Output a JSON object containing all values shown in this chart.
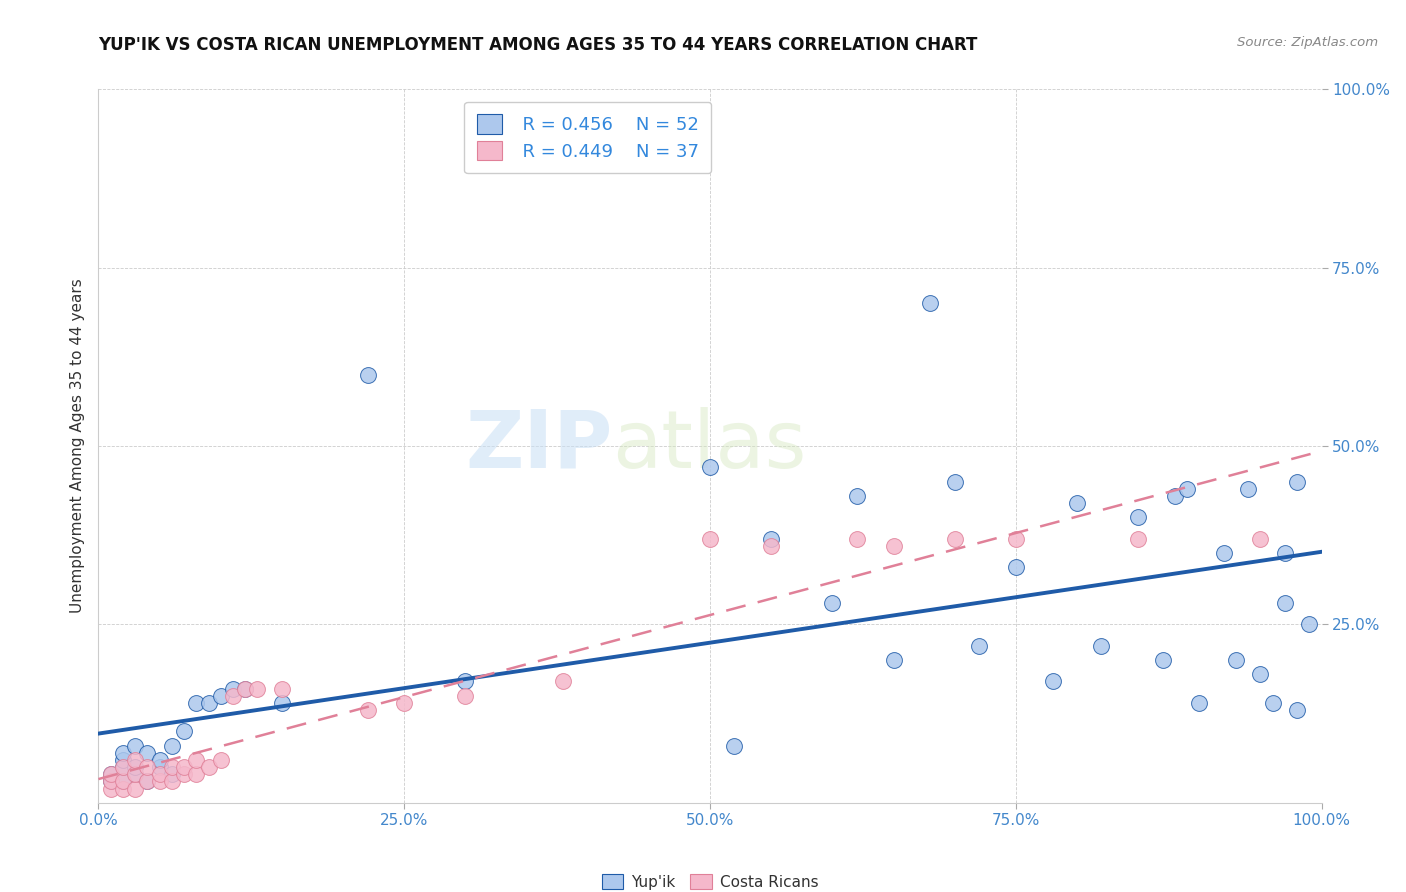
{
  "title": "YUP'IK VS COSTA RICAN UNEMPLOYMENT AMONG AGES 35 TO 44 YEARS CORRELATION CHART",
  "source": "Source: ZipAtlas.com",
  "ylabel": "Unemployment Among Ages 35 to 44 years",
  "xlim": [
    0,
    1.0
  ],
  "ylim": [
    0,
    1.0
  ],
  "xticks": [
    0.0,
    0.25,
    0.5,
    0.75,
    1.0
  ],
  "yticks": [
    0.25,
    0.5,
    0.75,
    1.0
  ],
  "xticklabels": [
    "0.0%",
    "25.0%",
    "50.0%",
    "75.0%",
    "100.0%"
  ],
  "yticklabels": [
    "25.0%",
    "50.0%",
    "75.0%",
    "100.0%"
  ],
  "legend_r1": "R = 0.456",
  "legend_n1": "N = 52",
  "legend_r2": "R = 0.449",
  "legend_n2": "N = 37",
  "color_yupik": "#adc8ed",
  "color_costarican": "#f5b8cb",
  "line_color_yupik": "#1f5ba8",
  "line_color_costarican": "#e08098",
  "watermark_zip": "ZIP",
  "watermark_atlas": "atlas",
  "title_fontsize": 12,
  "axis_label_fontsize": 11,
  "tick_fontsize": 11,
  "yupik_x": [
    0.01,
    0.01,
    0.02,
    0.02,
    0.02,
    0.02,
    0.03,
    0.03,
    0.03,
    0.04,
    0.04,
    0.05,
    0.05,
    0.06,
    0.06,
    0.07,
    0.08,
    0.09,
    0.1,
    0.11,
    0.12,
    0.15,
    0.22,
    0.3,
    0.5,
    0.52,
    0.55,
    0.6,
    0.62,
    0.65,
    0.68,
    0.7,
    0.72,
    0.75,
    0.78,
    0.8,
    0.82,
    0.85,
    0.87,
    0.88,
    0.89,
    0.9,
    0.92,
    0.93,
    0.94,
    0.95,
    0.96,
    0.97,
    0.97,
    0.98,
    0.98,
    0.99
  ],
  "yupik_y": [
    0.03,
    0.04,
    0.03,
    0.05,
    0.06,
    0.07,
    0.04,
    0.05,
    0.08,
    0.03,
    0.07,
    0.05,
    0.06,
    0.04,
    0.08,
    0.1,
    0.14,
    0.14,
    0.15,
    0.16,
    0.16,
    0.14,
    0.6,
    0.17,
    0.47,
    0.08,
    0.37,
    0.28,
    0.43,
    0.2,
    0.7,
    0.45,
    0.22,
    0.33,
    0.17,
    0.42,
    0.22,
    0.4,
    0.2,
    0.43,
    0.44,
    0.14,
    0.35,
    0.2,
    0.44,
    0.18,
    0.14,
    0.35,
    0.28,
    0.13,
    0.45,
    0.25
  ],
  "costarican_x": [
    0.01,
    0.01,
    0.01,
    0.02,
    0.02,
    0.02,
    0.03,
    0.03,
    0.03,
    0.04,
    0.04,
    0.05,
    0.05,
    0.06,
    0.06,
    0.07,
    0.07,
    0.08,
    0.08,
    0.09,
    0.1,
    0.11,
    0.12,
    0.13,
    0.15,
    0.22,
    0.25,
    0.3,
    0.38,
    0.5,
    0.55,
    0.62,
    0.65,
    0.7,
    0.75,
    0.85,
    0.95
  ],
  "costarican_y": [
    0.02,
    0.03,
    0.04,
    0.02,
    0.03,
    0.05,
    0.02,
    0.04,
    0.06,
    0.03,
    0.05,
    0.03,
    0.04,
    0.03,
    0.05,
    0.04,
    0.05,
    0.04,
    0.06,
    0.05,
    0.06,
    0.15,
    0.16,
    0.16,
    0.16,
    0.13,
    0.14,
    0.15,
    0.17,
    0.37,
    0.36,
    0.37,
    0.36,
    0.37,
    0.37,
    0.37,
    0.37
  ]
}
